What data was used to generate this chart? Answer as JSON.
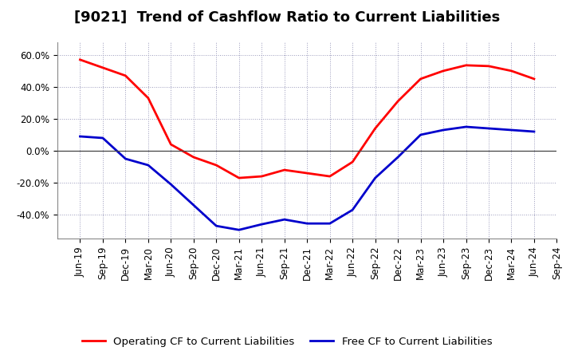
{
  "title": "[9021]  Trend of Cashflow Ratio to Current Liabilities",
  "x_labels": [
    "Jun-19",
    "Sep-19",
    "Dec-19",
    "Mar-20",
    "Jun-20",
    "Sep-20",
    "Dec-20",
    "Mar-21",
    "Jun-21",
    "Sep-21",
    "Dec-21",
    "Mar-22",
    "Jun-22",
    "Sep-22",
    "Dec-22",
    "Mar-23",
    "Jun-23",
    "Sep-23",
    "Dec-23",
    "Mar-24",
    "Jun-24",
    "Sep-24"
  ],
  "operating_cf": [
    57.0,
    52.0,
    47.0,
    33.0,
    4.0,
    -4.0,
    -9.0,
    -17.0,
    -16.0,
    -12.0,
    -14.0,
    -16.0,
    -7.0,
    14.0,
    31.0,
    45.0,
    50.0,
    53.5,
    53.0,
    50.0,
    45.0,
    null
  ],
  "free_cf": [
    9.0,
    8.0,
    -5.0,
    -9.0,
    -21.0,
    -34.0,
    -47.0,
    -49.5,
    -46.0,
    -43.0,
    -45.5,
    -45.5,
    -37.0,
    -17.0,
    -4.0,
    10.0,
    13.0,
    15.0,
    14.0,
    13.0,
    12.0,
    null
  ],
  "operating_color": "#ff0000",
  "free_color": "#0000cc",
  "ylim": [
    -55,
    68
  ],
  "yticks": [
    -40.0,
    -20.0,
    0.0,
    20.0,
    40.0,
    60.0
  ],
  "ytick_labels": [
    "-40.0%",
    "-20.0%",
    "0.0%",
    "20.0%",
    "40.0%",
    "60.0%"
  ],
  "bg_color": "#ffffff",
  "grid_color": "#9999bb",
  "legend_operating": "Operating CF to Current Liabilities",
  "legend_free": "Free CF to Current Liabilities",
  "title_fontsize": 13,
  "axis_fontsize": 8.5,
  "legend_fontsize": 9.5,
  "line_width": 2.0
}
